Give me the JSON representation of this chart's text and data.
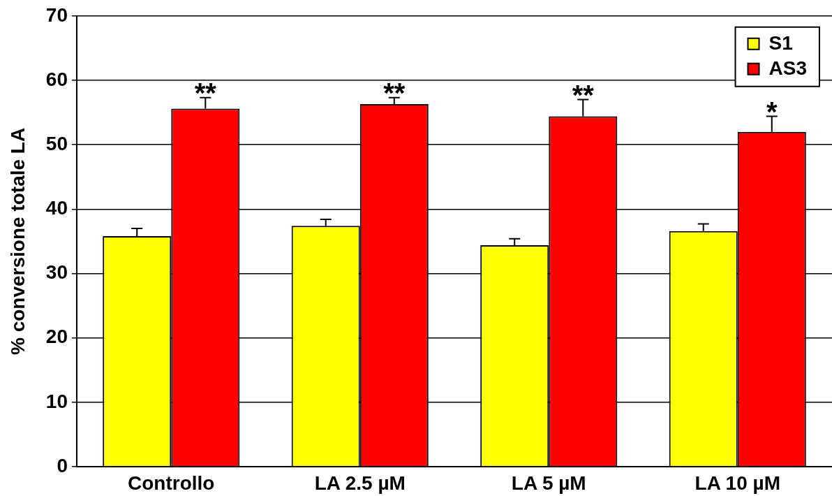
{
  "chart_data": {
    "type": "bar",
    "ylabel": "% conversione totale LA",
    "categories": [
      "Controllo",
      "LA 2.5 µM",
      "LA 5 µM",
      "LA 10 µM"
    ],
    "series": [
      {
        "name": "S1",
        "color": "#ffff00",
        "values": [
          35.8,
          37.4,
          34.4,
          36.6
        ],
        "errors": [
          [
            35.8,
            37.0
          ],
          [
            37.4,
            38.4
          ],
          [
            34.4,
            35.4
          ],
          [
            36.6,
            37.7
          ]
        ]
      },
      {
        "name": "AS3",
        "color": "#ff0000",
        "values": [
          55.6,
          56.3,
          54.4,
          52.0
        ],
        "errors": [
          [
            55.6,
            57.3
          ],
          [
            56.3,
            57.3
          ],
          [
            54.4,
            57.0
          ],
          [
            52.0,
            54.4
          ]
        ]
      }
    ],
    "ylim": [
      0,
      70
    ],
    "yticks": [
      0,
      10,
      20,
      30,
      40,
      50,
      60,
      70
    ],
    "grid": "y",
    "legend": "top right",
    "annotations": [
      {
        "text": "**",
        "x": "Controllo",
        "y": 55.6
      },
      {
        "text": "**",
        "x": "LA 2.5 µM",
        "y": 56.3
      },
      {
        "text": "**",
        "x": "LA 5 µM",
        "y": 54.4
      },
      {
        "text": "*",
        "x": "LA 10 µM",
        "y": 52.0
      }
    ]
  }
}
